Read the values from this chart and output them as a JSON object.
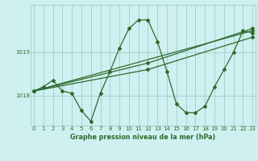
{
  "title": "Graphe pression niveau de la mer (hPa)",
  "background_color": "#cff0f0",
  "line_color": "#2d6a2d",
  "grid_color": "#9ecece",
  "series_main": {
    "x": [
      0,
      1,
      2,
      3,
      4,
      5,
      6,
      7,
      8,
      9,
      10,
      11,
      12,
      13,
      14,
      15,
      16,
      17,
      18,
      19,
      20,
      21,
      22,
      23
    ],
    "y": [
      1018.1,
      1018.2,
      1018.35,
      1018.1,
      1018.05,
      1017.65,
      1017.4,
      1018.05,
      1018.55,
      1019.1,
      1019.55,
      1019.75,
      1019.75,
      1019.25,
      1018.55,
      1017.8,
      1017.6,
      1017.6,
      1017.75,
      1018.2,
      1018.6,
      1019.0,
      1019.5,
      1019.45
    ]
  },
  "series_lines": [
    {
      "x": [
        0,
        23
      ],
      "y": [
        1018.1,
        1019.5
      ]
    },
    {
      "x": [
        0,
        12,
        23
      ],
      "y": [
        1018.1,
        1018.75,
        1019.55
      ]
    },
    {
      "x": [
        0,
        12,
        23
      ],
      "y": [
        1018.1,
        1018.6,
        1019.35
      ]
    }
  ],
  "yticks": [
    1018,
    1019
  ],
  "ylim": [
    1017.3,
    1020.1
  ],
  "xlim": [
    -0.3,
    23.3
  ],
  "xticks": [
    0,
    1,
    2,
    3,
    4,
    5,
    6,
    7,
    8,
    9,
    10,
    11,
    12,
    13,
    14,
    15,
    16,
    17,
    18,
    19,
    20,
    21,
    22,
    23
  ],
  "title_fontsize": 5.8,
  "tick_fontsize": 5.0
}
